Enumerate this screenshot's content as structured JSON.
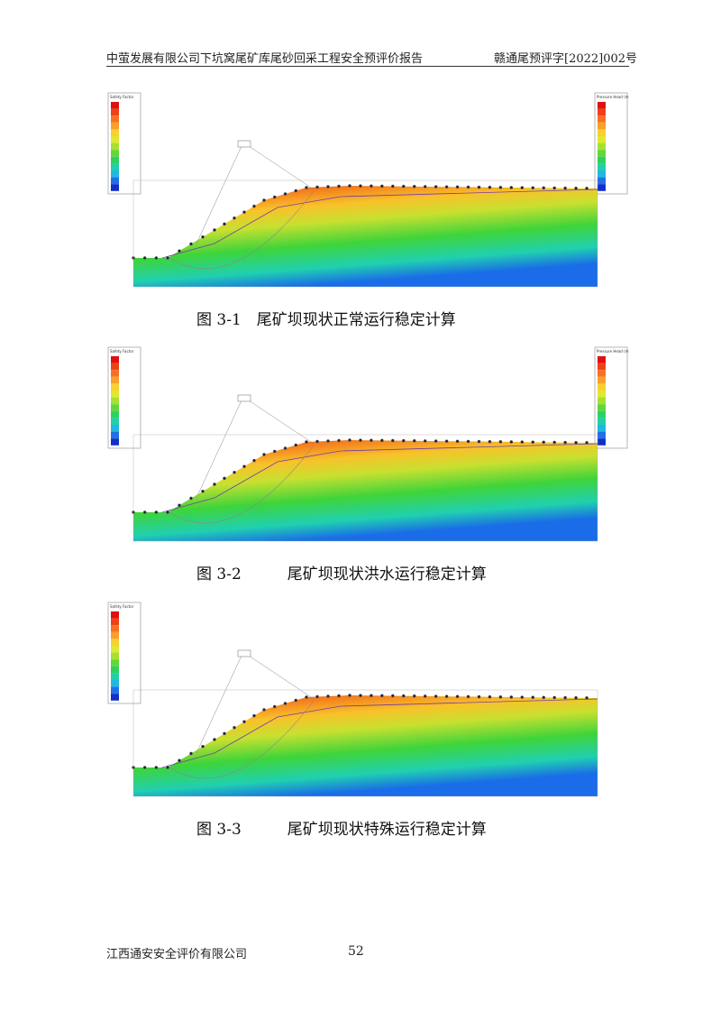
{
  "header": {
    "left": "中萤发展有限公司下坑窝尾矿库尾砂回采工程安全预评价报告",
    "right": "赣通尾预评字[2022]002号"
  },
  "figures": [
    {
      "caption": "图 3-1　尾矿坝现状正常运行稳定计算",
      "legend_left": "Safety Factor",
      "legend_right": "Pressure Head (m)"
    },
    {
      "caption": "图 3-2　　　尾矿坝现状洪水运行稳定计算",
      "legend_left": "Safety Factor",
      "legend_right": "Pressure Head (m)"
    },
    {
      "caption": "图 3-3　　　尾矿坝现状特殊运行稳定计算",
      "legend_left": "Safety Factor"
    }
  ],
  "footer": {
    "company": "江西通安安全评价有限公司",
    "page": "52"
  }
}
